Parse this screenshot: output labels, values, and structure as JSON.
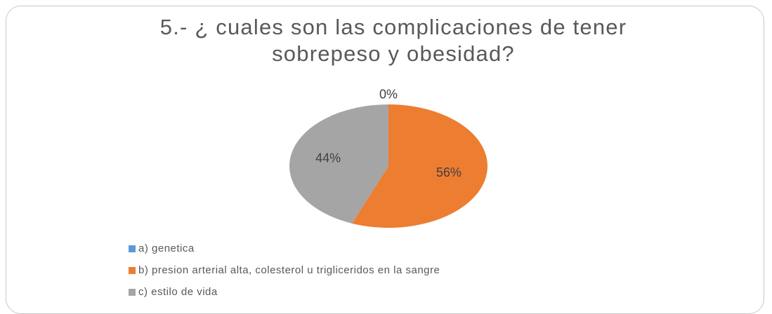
{
  "chart_data": {
    "type": "pie",
    "title": "5.- ¿ cuales son las complicaciones de tener sobrepeso y obesidad?",
    "categories": [
      "a) genetica",
      "b) presion arterial alta, colesterol u trigliceridos en la sangre",
      "c) estilo de vida"
    ],
    "values": [
      0,
      56,
      44
    ],
    "value_labels": [
      "0%",
      "56%",
      "44%"
    ],
    "colors": [
      "#5b9bd5",
      "#ed7d31",
      "#a5a5a5"
    ],
    "legend": "bottom-left"
  }
}
